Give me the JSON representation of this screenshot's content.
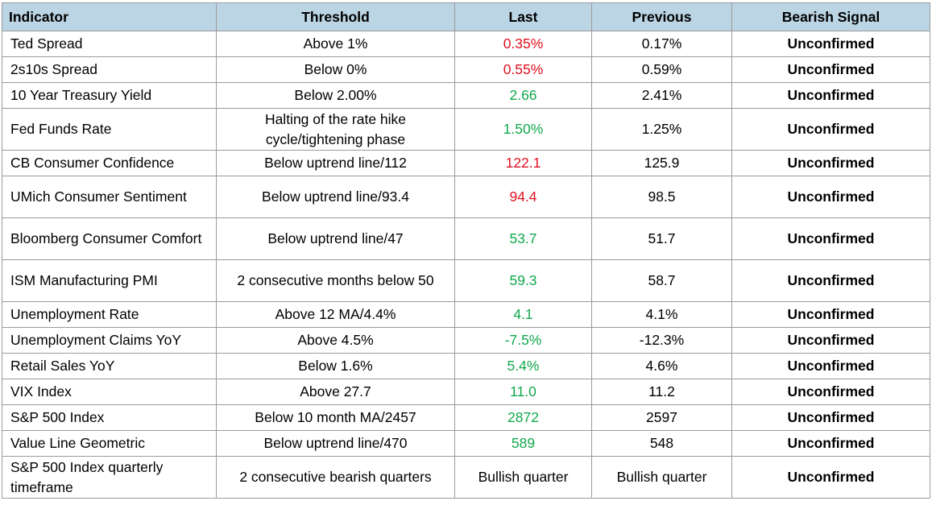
{
  "colors": {
    "header_bg": "#bcd5e4",
    "grid": "#9a9a9a",
    "red": "#e0111f",
    "green": "#10a84c"
  },
  "header": {
    "indicator": "Indicator",
    "threshold": "Threshold",
    "last": "Last",
    "previous": "Previous",
    "signal": "Bearish Signal"
  },
  "rows": [
    {
      "indicator": "Ted Spread",
      "threshold": "Above 1%",
      "last": "0.35%",
      "last_color": "red",
      "previous": "0.17%",
      "signal": "Unconfirmed"
    },
    {
      "indicator": "2s10s Spread",
      "threshold": "Below 0%",
      "last": "0.55%",
      "last_color": "red",
      "previous": "0.59%",
      "signal": "Unconfirmed"
    },
    {
      "indicator": "10 Year Treasury Yield",
      "threshold": "Below 2.00%",
      "last": "2.66",
      "last_color": "green",
      "previous": "2.41%",
      "signal": "Unconfirmed"
    },
    {
      "indicator": "Fed Funds Rate",
      "threshold": "Halting of the rate hike cycle/tightening phase",
      "last": "1.50%",
      "last_color": "green",
      "previous": "1.25%",
      "signal": "Unconfirmed"
    },
    {
      "indicator": "CB Consumer Confidence",
      "threshold": "Below uptrend line/112",
      "last": "122.1",
      "last_color": "red",
      "previous": "125.9",
      "signal": "Unconfirmed"
    },
    {
      "indicator": "UMich Consumer Sentiment",
      "threshold": "Below uptrend line/93.4",
      "last": "94.4",
      "last_color": "red",
      "previous": "98.5",
      "signal": "Unconfirmed"
    },
    {
      "indicator": "Bloomberg Consumer Comfort",
      "threshold": "Below uptrend line/47",
      "last": "53.7",
      "last_color": "green",
      "previous": "51.7",
      "signal": "Unconfirmed"
    },
    {
      "indicator": "ISM Manufacturing PMI",
      "threshold": "2 consecutive months below 50",
      "last": "59.3",
      "last_color": "green",
      "previous": "58.7",
      "signal": "Unconfirmed"
    },
    {
      "indicator": "Unemployment Rate",
      "threshold": "Above 12 MA/4.4%",
      "last": "4.1",
      "last_color": "green",
      "previous": "4.1%",
      "signal": "Unconfirmed"
    },
    {
      "indicator": "Unemployment Claims YoY",
      "threshold": "Above 4.5%",
      "last": "-7.5%",
      "last_color": "green",
      "previous": "-12.3%",
      "signal": "Unconfirmed"
    },
    {
      "indicator": "Retail Sales YoY",
      "threshold": "Below 1.6%",
      "last": "5.4%",
      "last_color": "green",
      "previous": "4.6%",
      "signal": "Unconfirmed"
    },
    {
      "indicator": "VIX Index",
      "threshold": "Above 27.7",
      "last": "11.0",
      "last_color": "green",
      "previous": "11.2",
      "signal": "Unconfirmed"
    },
    {
      "indicator": "S&P 500 Index",
      "threshold": "Below 10 month MA/2457",
      "last": "2872",
      "last_color": "green",
      "previous": "2597",
      "signal": "Unconfirmed"
    },
    {
      "indicator": "Value Line Geometric",
      "threshold": "Below uptrend line/470",
      "last": "589",
      "last_color": "green",
      "previous": "548",
      "signal": "Unconfirmed"
    },
    {
      "indicator": "S&P 500 Index quarterly timeframe",
      "threshold": "2 consecutive bearish quarters",
      "last": "Bullish quarter",
      "last_color": "black",
      "previous": "Bullish quarter",
      "signal": "Unconfirmed"
    }
  ]
}
